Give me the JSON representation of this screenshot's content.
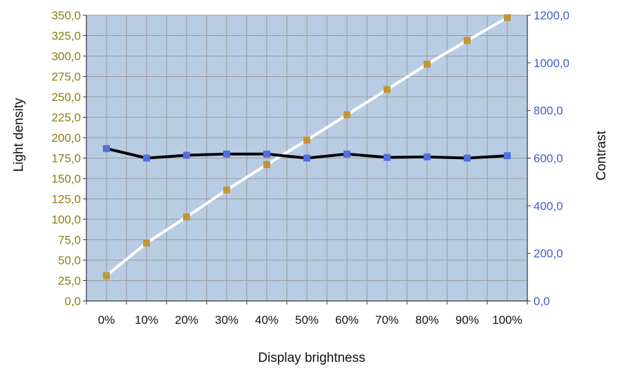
{
  "chart_data": {
    "type": "line",
    "xlabel": "Display brightness",
    "ylabel_left": "Light density",
    "ylabel_right": "Contrast",
    "categories": [
      "0%",
      "10%",
      "20%",
      "30%",
      "40%",
      "50%",
      "60%",
      "70%",
      "80%",
      "90%",
      "100%"
    ],
    "ylim_left": [
      0,
      350
    ],
    "ylim_right": [
      0,
      1200
    ],
    "yticks_left": [
      "0,0",
      "25,0",
      "50,0",
      "75,0",
      "100,0",
      "125,0",
      "150,0",
      "175,0",
      "200,0",
      "225,0",
      "250,0",
      "275,0",
      "300,0",
      "325,0",
      "350,0"
    ],
    "yticks_right": [
      "0,0",
      "200,0",
      "400,0",
      "600,0",
      "800,0",
      "1000,0",
      "1200,0"
    ],
    "grid": true,
    "series": [
      {
        "axis": "left",
        "values": [
          31,
          71,
          103,
          136,
          167,
          197,
          228,
          259,
          290,
          319,
          347
        ],
        "line_color": "#ffffff",
        "marker_color": "#c29636"
      },
      {
        "axis": "right",
        "values": [
          640,
          600,
          612,
          617,
          617,
          600,
          617,
          603,
          605,
          600,
          610
        ],
        "line_color": "#000000",
        "marker_color": "#4f6fe0"
      }
    ],
    "colors": {
      "plot_background": "#b8cce4",
      "grid": "#9a9a9a",
      "left_axis_text": "#8a7d12",
      "right_axis_text": "#3a5fd0"
    }
  }
}
